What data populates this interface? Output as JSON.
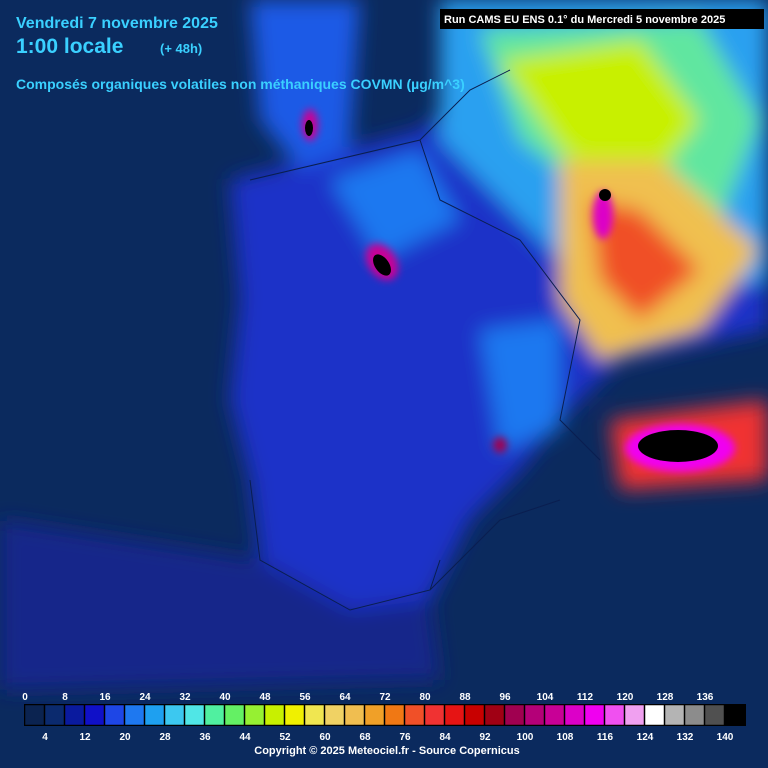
{
  "header": {
    "date": "Vendredi 7 novembre 2025",
    "time": "1:00 locale",
    "lead": "(+ 48h)",
    "variable": "Composés organiques volatiles non méthaniques COVMN (µg/m^3)"
  },
  "run": "Run CAMS EU ENS 0.1° du Mercredi 5 novembre 2025",
  "legend": {
    "labels_top": [
      0,
      8,
      16,
      24,
      32,
      40,
      48,
      56,
      64,
      72,
      80,
      88,
      96,
      104,
      112,
      120,
      128,
      136
    ],
    "labels_bottom": [
      4,
      12,
      20,
      28,
      36,
      44,
      52,
      60,
      68,
      76,
      84,
      92,
      100,
      108,
      116,
      124,
      132,
      140
    ],
    "colors": [
      "#0b2350",
      "#0b2a6e",
      "#0a1a9e",
      "#1010c8",
      "#1e46e6",
      "#1e78f0",
      "#1ea0f0",
      "#3cc8f0",
      "#50e6e6",
      "#50f0a0",
      "#64f064",
      "#96f032",
      "#c8f000",
      "#f0f000",
      "#f0e650",
      "#f0d264",
      "#f0be50",
      "#f0a028",
      "#f07814",
      "#f05028",
      "#f03232",
      "#e61414",
      "#c80000",
      "#a00014",
      "#a00050",
      "#b40078",
      "#c80096",
      "#dc00c8",
      "#f000f0",
      "#f050f0",
      "#f0a0f0",
      "#ffffff",
      "#b4b4b4",
      "#8c8c8c",
      "#505050",
      "#000000"
    ]
  },
  "footer": "Copyright © 2025 Meteociel.fr - Source Copernicus"
}
